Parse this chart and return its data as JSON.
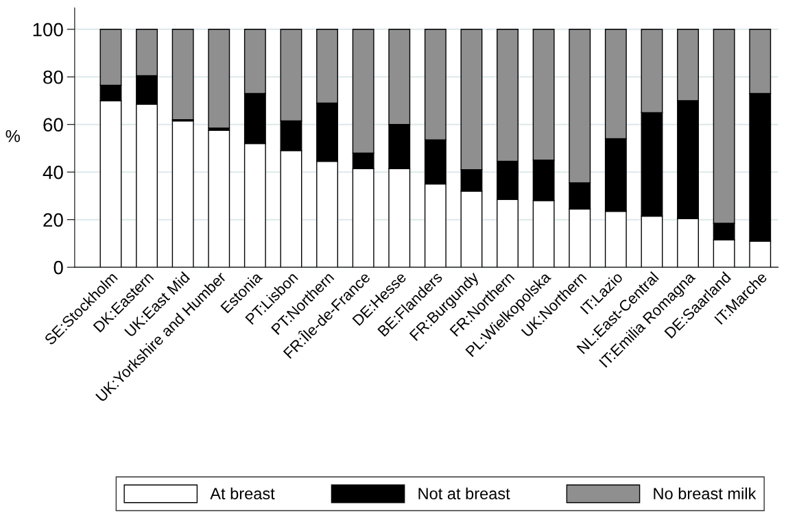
{
  "chart_data": {
    "type": "bar",
    "stacked": true,
    "ylabel": "%",
    "categories": [
      "SE:Stockholm",
      "DK:Eastern",
      "UK:East Mid",
      "UK:Yorkshire and Humber",
      "Estonia",
      "PT:Lisbon",
      "PT:Northern",
      "FR:Île-de-France",
      "DE:Hesse",
      "BE:Flanders",
      "FR:Burgundy",
      "FR:Northern",
      "PL:Wielkopolska",
      "UK:Northern",
      "IT:Lazio",
      "NL:East-Central",
      "IT:Emilia Romagna",
      "DE:Saarland",
      "IT:Marche"
    ],
    "series": [
      {
        "name": "At breast",
        "color": "#ffffff",
        "values": [
          70,
          68.5,
          61.5,
          57.5,
          52,
          49,
          44.5,
          41.5,
          41.5,
          35,
          32,
          28.5,
          28,
          24.5,
          23.5,
          21.5,
          20.5,
          11.5,
          11
        ]
      },
      {
        "name": "Not at breast",
        "color": "#000000",
        "values": [
          6.5,
          12,
          0.5,
          1,
          21,
          12.5,
          24.5,
          6.5,
          18.5,
          18.5,
          9,
          16,
          17,
          11,
          30.5,
          43.5,
          49.5,
          7,
          62
        ]
      },
      {
        "name": "No breast milk",
        "color": "#8f8f8f",
        "values": [
          23.5,
          19.5,
          38,
          41.5,
          27,
          38.5,
          31,
          52,
          40,
          46.5,
          59,
          55.5,
          55,
          64.5,
          46,
          35,
          30,
          81.5,
          27
        ]
      }
    ],
    "ylim": [
      0,
      109
    ],
    "yticks": [
      0,
      20,
      40,
      60,
      80,
      100
    ],
    "grid": "y",
    "legend": "bottom"
  }
}
